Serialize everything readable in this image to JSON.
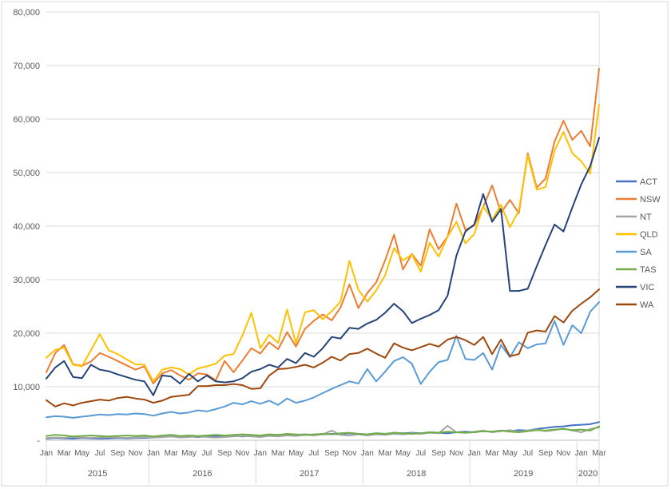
{
  "colors": {
    "background": "#FFFFFF",
    "chart_border": "#D9D9D9",
    "gridline": "#D9D9D9",
    "axis_line": "#BFBFBF",
    "text": "#595959"
  },
  "chart_data": {
    "type": "line",
    "title": "",
    "grid": true,
    "legend_position": "right",
    "x_months": [
      "Jan-15",
      "Feb-15",
      "Mar-15",
      "Apr-15",
      "May-15",
      "Jun-15",
      "Jul-15",
      "Aug-15",
      "Sep-15",
      "Oct-15",
      "Nov-15",
      "Dec-15",
      "Jan-16",
      "Feb-16",
      "Mar-16",
      "Apr-16",
      "May-16",
      "Jun-16",
      "Jul-16",
      "Aug-16",
      "Sep-16",
      "Oct-16",
      "Nov-16",
      "Dec-16",
      "Jan-17",
      "Feb-17",
      "Mar-17",
      "Apr-17",
      "May-17",
      "Jun-17",
      "Jul-17",
      "Aug-17",
      "Sep-17",
      "Oct-17",
      "Nov-17",
      "Dec-17",
      "Jan-18",
      "Feb-18",
      "Mar-18",
      "Apr-18",
      "May-18",
      "Jun-18",
      "Jul-18",
      "Aug-18",
      "Sep-18",
      "Oct-18",
      "Nov-18",
      "Dec-18",
      "Jan-19",
      "Feb-19",
      "Mar-19",
      "Apr-19",
      "May-19",
      "Jun-19",
      "Jul-19",
      "Aug-19",
      "Sep-19",
      "Oct-19",
      "Nov-19",
      "Dec-19",
      "Jan-20",
      "Feb-20",
      "Mar-20"
    ],
    "x_axis": {
      "month_tick_labels": [
        "Jan",
        "Mar",
        "May",
        "Jul",
        "Sep",
        "Nov"
      ],
      "year_labels": [
        "2015",
        "2016",
        "2017",
        "2018",
        "2019",
        "2020"
      ],
      "months_per_year": [
        12,
        12,
        12,
        12,
        12,
        3
      ]
    },
    "y_axis": {
      "min": 0,
      "max": 80000,
      "step": 10000,
      "tick_labels": [
        "-",
        "10,000",
        "20,000",
        "30,000",
        "40,000",
        "50,000",
        "60,000",
        "70,000",
        "80,000"
      ]
    },
    "series": [
      {
        "name": "ACT",
        "color": "#4472C4",
        "values": [
          300,
          400,
          350,
          300,
          400,
          350,
          300,
          350,
          400,
          350,
          400,
          450,
          500,
          600,
          700,
          600,
          700,
          600,
          700,
          800,
          700,
          800,
          700,
          800,
          800,
          900,
          1000,
          900,
          1000,
          1100,
          1000,
          1100,
          1200,
          1100,
          1300,
          1200,
          1100,
          1300,
          1200,
          1400,
          1300,
          1400,
          1300,
          1500,
          1400,
          1300,
          1500,
          1600,
          1500,
          1700,
          1600,
          1800,
          1700,
          1900,
          1800,
          2100,
          2300,
          2500,
          2600,
          2800,
          2900,
          3000,
          3400
        ]
      },
      {
        "name": "NSW",
        "color": "#ED7D31",
        "values": [
          12700,
          16300,
          17800,
          14200,
          13900,
          14700,
          16300,
          15600,
          14800,
          14000,
          13200,
          13800,
          10600,
          12500,
          13100,
          12100,
          11300,
          12500,
          12300,
          11200,
          14800,
          12700,
          14900,
          17200,
          16200,
          18300,
          17000,
          20200,
          17500,
          20800,
          22300,
          23500,
          22400,
          24800,
          29100,
          24700,
          27500,
          29500,
          33600,
          38400,
          31900,
          34800,
          32600,
          39400,
          35700,
          38000,
          44200,
          39300,
          40100,
          43600,
          47600,
          42500,
          44900,
          42400,
          53600,
          47200,
          48900,
          55800,
          59700,
          56100,
          57800,
          54900,
          69400
        ]
      },
      {
        "name": "NT",
        "color": "#A5A5A5",
        "values": [
          400,
          500,
          450,
          600,
          500,
          450,
          500,
          600,
          500,
          450,
          500,
          600,
          500,
          600,
          700,
          500,
          600,
          700,
          600,
          500,
          600,
          700,
          800,
          700,
          600,
          800,
          700,
          900,
          800,
          1000,
          900,
          1100,
          1800,
          1000,
          900,
          1100,
          900,
          1100,
          1000,
          1200,
          1100,
          1300,
          1200,
          1400,
          1300,
          2700,
          1500,
          1400,
          1600,
          1800,
          1500,
          1700,
          1900,
          1600,
          1800,
          2000,
          1700,
          1900,
          2200,
          1800,
          1500,
          2100,
          2400
        ]
      },
      {
        "name": "QLD",
        "color": "#FFC000",
        "values": [
          15400,
          16900,
          17300,
          14100,
          13800,
          16800,
          19800,
          16800,
          16100,
          15100,
          14200,
          14100,
          11000,
          13200,
          13600,
          13300,
          12300,
          13400,
          13800,
          14300,
          15800,
          16100,
          19600,
          23800,
          17200,
          19700,
          18200,
          24400,
          18100,
          23900,
          24300,
          22600,
          24100,
          25900,
          33500,
          28100,
          25900,
          28000,
          30800,
          35900,
          33600,
          34700,
          31500,
          36900,
          34300,
          38000,
          40800,
          36800,
          38500,
          43700,
          41200,
          44000,
          39800,
          42900,
          53200,
          46800,
          47300,
          54100,
          57600,
          53600,
          52100,
          49800,
          62700
        ]
      },
      {
        "name": "SA",
        "color": "#5B9BD5",
        "values": [
          4300,
          4500,
          4400,
          4200,
          4400,
          4600,
          4800,
          4700,
          4900,
          4800,
          5000,
          4900,
          4600,
          5000,
          5300,
          5000,
          5200,
          5600,
          5400,
          5800,
          6300,
          7000,
          6700,
          7300,
          6800,
          7400,
          6600,
          7800,
          7000,
          7400,
          8000,
          8800,
          9600,
          10300,
          11000,
          10600,
          13300,
          11000,
          12800,
          14800,
          15500,
          14300,
          10500,
          12800,
          14600,
          15000,
          19500,
          15200,
          15000,
          16300,
          13200,
          17800,
          15500,
          18300,
          17200,
          17900,
          18100,
          22300,
          17800,
          21500,
          20000,
          24000,
          25800
        ]
      },
      {
        "name": "TAS",
        "color": "#70AD47",
        "values": [
          800,
          1000,
          900,
          700,
          800,
          900,
          800,
          700,
          800,
          900,
          800,
          900,
          700,
          900,
          1000,
          800,
          900,
          800,
          900,
          1000,
          900,
          1000,
          1100,
          1000,
          900,
          1100,
          1000,
          1200,
          1100,
          1000,
          1100,
          1200,
          1100,
          1300,
          1400,
          1200,
          1100,
          1300,
          1200,
          1400,
          1300,
          1200,
          1300,
          1500,
          1400,
          1600,
          1500,
          1400,
          1500,
          1700,
          1600,
          1800,
          1600,
          1500,
          1700,
          1900,
          1800,
          2000,
          2100,
          1900,
          2000,
          1800,
          2600
        ]
      },
      {
        "name": "VIC",
        "color": "#264478",
        "values": [
          11500,
          13600,
          14800,
          11800,
          11600,
          14100,
          13200,
          12900,
          12300,
          11800,
          11300,
          11000,
          8400,
          12100,
          11900,
          10600,
          12400,
          11000,
          12100,
          11000,
          10800,
          11000,
          11600,
          12800,
          13300,
          14100,
          13600,
          15200,
          14400,
          16300,
          15600,
          17200,
          19300,
          19000,
          21000,
          20800,
          21800,
          22500,
          23800,
          25500,
          24100,
          21900,
          22700,
          23400,
          24300,
          27000,
          34500,
          39000,
          40300,
          46000,
          40800,
          43200,
          27900,
          27900,
          28300,
          32500,
          36500,
          40300,
          39000,
          43500,
          47800,
          51200,
          56500
        ]
      },
      {
        "name": "WA",
        "color": "#9E480E",
        "values": [
          7500,
          6300,
          6900,
          6500,
          7000,
          7300,
          7600,
          7400,
          7900,
          8100,
          7800,
          7600,
          7000,
          7400,
          8100,
          8300,
          8500,
          10100,
          10100,
          10300,
          10300,
          10500,
          10300,
          9600,
          9700,
          12100,
          13300,
          13400,
          13700,
          14100,
          13600,
          14500,
          15600,
          14900,
          16100,
          16300,
          17100,
          16200,
          15400,
          18100,
          17300,
          16800,
          17400,
          18000,
          17500,
          18800,
          19300,
          18700,
          17800,
          19300,
          16100,
          18800,
          15700,
          16100,
          20100,
          20500,
          20300,
          23200,
          22000,
          24200,
          25500,
          26700,
          28200
        ]
      }
    ]
  }
}
